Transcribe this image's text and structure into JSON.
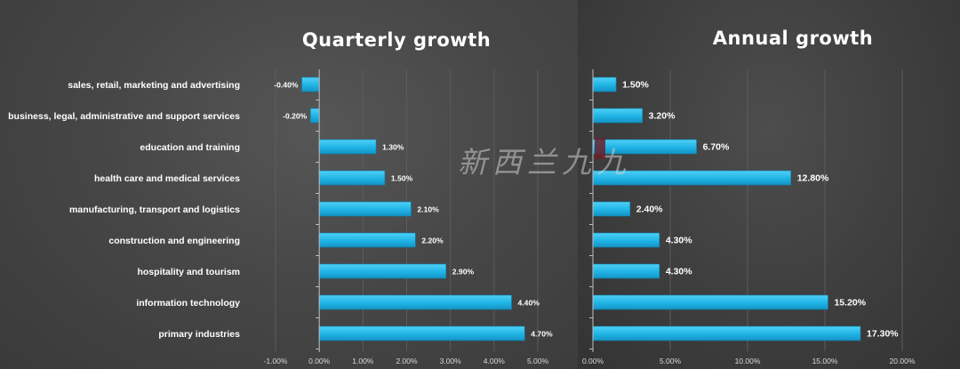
{
  "watermark": "新西兰九九",
  "chart_data": [
    {
      "type": "bar",
      "orientation": "horizontal",
      "title": "Quarterly growth",
      "categories": [
        "sales, retail, marketing and advertising",
        "business, legal, administrative and support services",
        "education and training",
        "health care and medical services",
        "manufacturing, transport and logistics",
        "construction and engineering",
        "hospitality and tourism",
        "information technology",
        "primary industries"
      ],
      "values": [
        -0.4,
        -0.2,
        1.3,
        1.5,
        2.1,
        2.2,
        2.9,
        4.4,
        4.7
      ],
      "value_labels": [
        "-0.40%",
        "-0.20%",
        "1.30%",
        "1.50%",
        "2.10%",
        "2.20%",
        "2.90%",
        "4.40%",
        "4.70%"
      ],
      "xlim": [
        -1,
        5
      ],
      "ticks": [
        -1,
        0,
        1,
        2,
        3,
        4,
        5
      ],
      "tick_labels": [
        "-1.00%",
        "0.00%",
        "1.00%",
        "2.00%",
        "3.00%",
        "4.00%",
        "5.00%"
      ],
      "grid": true,
      "bar_color": "#1fb4e6"
    },
    {
      "type": "bar",
      "orientation": "horizontal",
      "title": "Annual growth",
      "categories": [
        "sales, retail, marketing and advertising",
        "business, legal, administrative and support services",
        "education and training",
        "health care and medical services",
        "manufacturing, transport and logistics",
        "construction and engineering",
        "hospitality and tourism",
        "information technology",
        "primary industries"
      ],
      "values": [
        1.5,
        3.2,
        6.7,
        12.8,
        2.4,
        4.3,
        4.3,
        15.2,
        17.3
      ],
      "value_labels": [
        "1.50%",
        "3.20%",
        "6.70%",
        "12.80%",
        "2.40%",
        "4.30%",
        "4.30%",
        "15.20%",
        "17.30%"
      ],
      "xlim": [
        0,
        20
      ],
      "ticks": [
        0,
        5,
        10,
        15,
        20
      ],
      "tick_labels": [
        "0.00%",
        "5.00%",
        "10.00%",
        "15.00%",
        "20.00%"
      ],
      "grid": true,
      "bar_color": "#1fb4e6"
    }
  ]
}
